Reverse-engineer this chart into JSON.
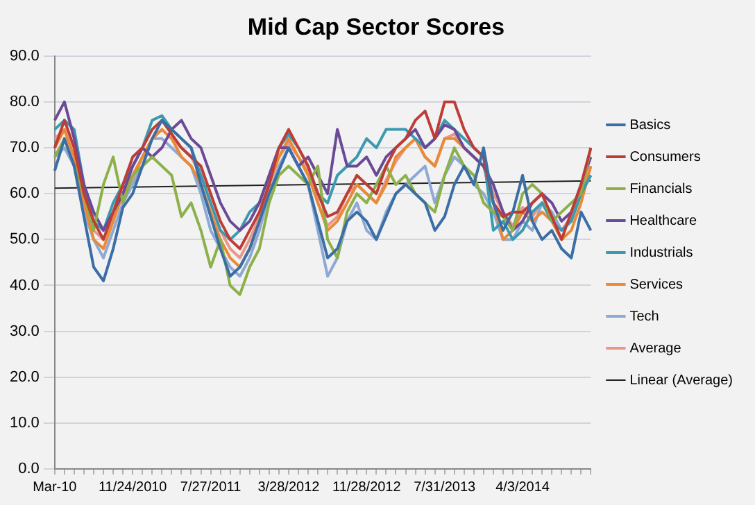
{
  "chart_data": {
    "type": "line",
    "title": "Mid Cap Sector Scores",
    "categories": [
      "Mar-10",
      null,
      null,
      null,
      null,
      null,
      null,
      null,
      "11/24/2010",
      null,
      null,
      null,
      null,
      null,
      null,
      null,
      "7/27/2011",
      null,
      null,
      null,
      null,
      null,
      null,
      null,
      "3/28/2012",
      null,
      null,
      null,
      null,
      null,
      null,
      null,
      "11/28/2012",
      null,
      null,
      null,
      null,
      null,
      null,
      null,
      "7/31/2013",
      null,
      null,
      null,
      null,
      null,
      null,
      null,
      "4/3/2014",
      null,
      null,
      null,
      null,
      null,
      null,
      null
    ],
    "series": [
      {
        "name": "Basics",
        "color": "#3a6ea5",
        "values": [
          65,
          72,
          66,
          55,
          44,
          41,
          48,
          57,
          60,
          66,
          72,
          76,
          74,
          72,
          70,
          62,
          55,
          48,
          42,
          44,
          48,
          54,
          60,
          65,
          70,
          66,
          62,
          54,
          46,
          48,
          54,
          56,
          54,
          50,
          55,
          60,
          62,
          60,
          58,
          52,
          55,
          62,
          66,
          62,
          70,
          58,
          52,
          56,
          64,
          54,
          50,
          52,
          48,
          46,
          56,
          52
        ]
      },
      {
        "name": "Consumers",
        "color": "#be3c37",
        "values": [
          70,
          76,
          70,
          60,
          54,
          50,
          56,
          62,
          68,
          70,
          74,
          76,
          73,
          70,
          68,
          66,
          60,
          54,
          50,
          48,
          52,
          56,
          62,
          70,
          74,
          70,
          66,
          60,
          55,
          56,
          60,
          64,
          62,
          60,
          66,
          70,
          72,
          76,
          78,
          72,
          80,
          80,
          74,
          70,
          68,
          58,
          55,
          56,
          56,
          58,
          60,
          55,
          50,
          56,
          62,
          70
        ]
      },
      {
        "name": "Financials",
        "color": "#8db04a",
        "values": [
          68,
          72,
          66,
          60,
          52,
          62,
          68,
          58,
          64,
          66,
          68,
          66,
          64,
          55,
          58,
          52,
          44,
          50,
          40,
          38,
          44,
          48,
          58,
          64,
          66,
          64,
          62,
          66,
          50,
          46,
          56,
          60,
          58,
          62,
          66,
          62,
          64,
          60,
          58,
          56,
          64,
          70,
          66,
          64,
          58,
          56,
          55,
          52,
          60,
          62,
          60,
          54,
          56,
          58,
          60,
          70
        ]
      },
      {
        "name": "Healthcare",
        "color": "#6a4a96",
        "values": [
          76,
          80,
          72,
          62,
          56,
          52,
          56,
          60,
          66,
          70,
          68,
          70,
          74,
          76,
          72,
          70,
          64,
          58,
          54,
          52,
          54,
          58,
          64,
          70,
          70,
          66,
          68,
          64,
          60,
          74,
          66,
          66,
          68,
          64,
          68,
          70,
          72,
          74,
          70,
          72,
          75,
          74,
          70,
          68,
          66,
          62,
          56,
          52,
          54,
          58,
          60,
          58,
          54,
          56,
          62,
          68
        ]
      },
      {
        "name": "Industrials",
        "color": "#3a9ab0",
        "values": [
          74,
          76,
          74,
          62,
          54,
          52,
          58,
          62,
          66,
          70,
          76,
          77,
          74,
          72,
          70,
          64,
          58,
          52,
          50,
          52,
          56,
          58,
          64,
          70,
          73,
          70,
          66,
          60,
          58,
          64,
          66,
          68,
          72,
          70,
          74,
          74,
          74,
          72,
          70,
          72,
          76,
          74,
          72,
          70,
          68,
          52,
          54,
          50,
          52,
          56,
          58,
          54,
          52,
          54,
          60,
          64
        ]
      },
      {
        "name": "Services",
        "color": "#e88a36",
        "values": [
          70,
          74,
          68,
          58,
          50,
          48,
          54,
          60,
          64,
          68,
          72,
          74,
          72,
          68,
          66,
          62,
          56,
          50,
          46,
          44,
          48,
          54,
          62,
          68,
          72,
          68,
          64,
          58,
          52,
          54,
          58,
          62,
          60,
          58,
          62,
          68,
          70,
          72,
          68,
          66,
          72,
          72,
          70,
          68,
          66,
          58,
          50,
          52,
          56,
          54,
          56,
          54,
          50,
          52,
          58,
          66
        ]
      },
      {
        "name": "Tech",
        "color": "#8ea9d4",
        "values": [
          68,
          70,
          66,
          56,
          50,
          46,
          52,
          58,
          62,
          66,
          72,
          72,
          70,
          68,
          66,
          60,
          52,
          48,
          44,
          42,
          46,
          52,
          60,
          66,
          70,
          66,
          62,
          52,
          42,
          46,
          54,
          58,
          52,
          50,
          56,
          60,
          62,
          64,
          66,
          58,
          64,
          68,
          66,
          62,
          60,
          56,
          50,
          50,
          54,
          52,
          58,
          56,
          52,
          54,
          60,
          64
        ]
      },
      {
        "name": "Average",
        "color": "#e8988a",
        "values": [
          72,
          74,
          68,
          58,
          52,
          50,
          55,
          60,
          63,
          68,
          72,
          74,
          72,
          70,
          68,
          64,
          58,
          52,
          48,
          46,
          50,
          55,
          62,
          68,
          71,
          68,
          65,
          58,
          53,
          55,
          60,
          62,
          60,
          58,
          63,
          67,
          70,
          72,
          68,
          66,
          72,
          73,
          70,
          68,
          66,
          60,
          56,
          53,
          57,
          55,
          58,
          56,
          52,
          55,
          60,
          66
        ]
      },
      {
        "name": "Linear (Average)",
        "color": "#1f1f1f",
        "values": [
          61.2,
          null,
          null,
          null,
          null,
          null,
          null,
          null,
          null,
          null,
          null,
          null,
          null,
          null,
          null,
          null,
          null,
          null,
          null,
          null,
          null,
          null,
          null,
          null,
          null,
          null,
          null,
          null,
          null,
          null,
          null,
          null,
          null,
          null,
          null,
          null,
          null,
          null,
          null,
          null,
          null,
          null,
          null,
          null,
          null,
          null,
          null,
          null,
          null,
          null,
          null,
          null,
          null,
          null,
          null,
          62.8
        ]
      }
    ],
    "ylim": [
      0,
      90
    ],
    "yticks": [
      {
        "value": 0,
        "label": "0.0"
      },
      {
        "value": 10,
        "label": "10.0"
      },
      {
        "value": 20,
        "label": "20.0"
      },
      {
        "value": 30,
        "label": "30.0"
      },
      {
        "value": 40,
        "label": "40.0"
      },
      {
        "value": 50,
        "label": "50.0"
      },
      {
        "value": 60,
        "label": "60.0"
      },
      {
        "value": 70,
        "label": "70.0"
      },
      {
        "value": 80,
        "label": "80.0"
      },
      {
        "value": 90,
        "label": "90.0"
      }
    ],
    "grid": "y",
    "legend": "right",
    "marker": "none",
    "line_style": "solid"
  }
}
